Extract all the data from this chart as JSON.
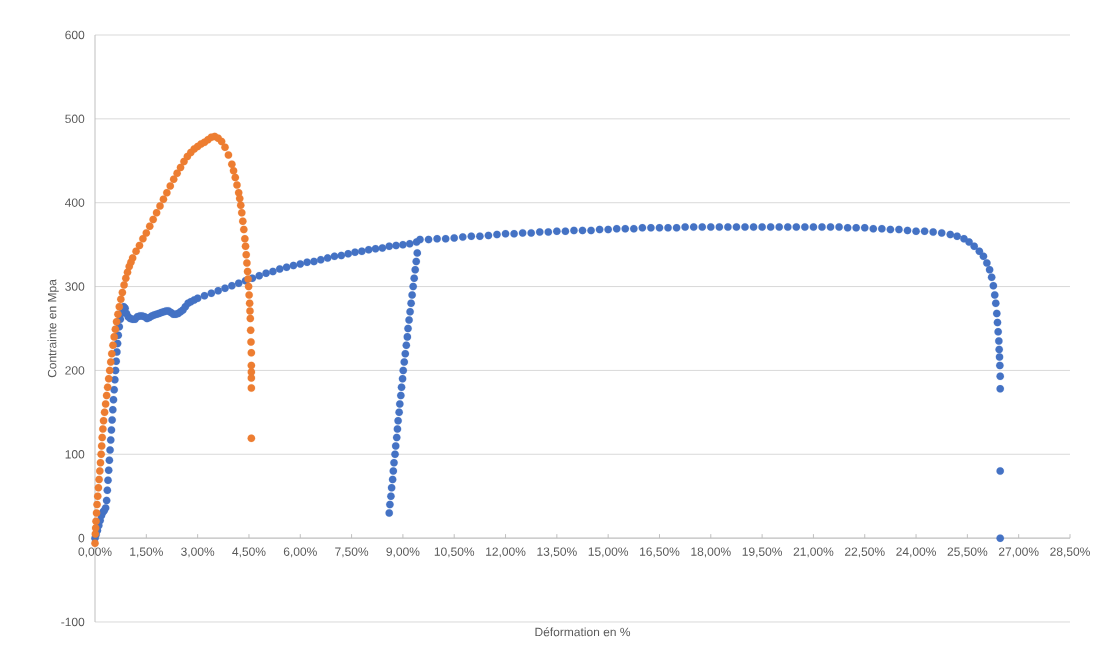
{
  "chart_data": {
    "type": "scatter",
    "xlabel": "Déformation en %",
    "ylabel": "Contrainte en Mpa",
    "xlim": [
      0,
      28.5
    ],
    "ylim": [
      -100,
      600
    ],
    "xticks": [
      {
        "value": 0,
        "label": "0,00%"
      },
      {
        "value": 1.5,
        "label": "1,50%"
      },
      {
        "value": 3,
        "label": "3,00%"
      },
      {
        "value": 4.5,
        "label": "4,50%"
      },
      {
        "value": 6,
        "label": "6,00%"
      },
      {
        "value": 7.5,
        "label": "7,50%"
      },
      {
        "value": 9,
        "label": "9,00%"
      },
      {
        "value": 10.5,
        "label": "10,50%"
      },
      {
        "value": 12,
        "label": "12,00%"
      },
      {
        "value": 13.5,
        "label": "13,50%"
      },
      {
        "value": 15,
        "label": "15,00%"
      },
      {
        "value": 16.5,
        "label": "16,50%"
      },
      {
        "value": 18,
        "label": "18,00%"
      },
      {
        "value": 19.5,
        "label": "19,50%"
      },
      {
        "value": 21,
        "label": "21,00%"
      },
      {
        "value": 22.5,
        "label": "22,50%"
      },
      {
        "value": 24,
        "label": "24,00%"
      },
      {
        "value": 25.5,
        "label": "25,50%"
      },
      {
        "value": 27,
        "label": "27,00%"
      },
      {
        "value": 28.5,
        "label": "28,50%"
      }
    ],
    "yticks": [
      -100,
      0,
      100,
      200,
      300,
      400,
      500,
      600
    ],
    "grid": "y",
    "marker": "circle",
    "series": [
      {
        "color": "#4472c4",
        "x": [
          0.0,
          0.03,
          0.07,
          0.11,
          0.15,
          0.19,
          0.23,
          0.27,
          0.31,
          0.34,
          0.36,
          0.38,
          0.4,
          0.42,
          0.44,
          0.46,
          0.48,
          0.5,
          0.52,
          0.54,
          0.56,
          0.58,
          0.6,
          0.62,
          0.64,
          0.66,
          0.68,
          0.71,
          0.74,
          0.77,
          0.84,
          0.88,
          0.92,
          0.97,
          1.03,
          1.1,
          1.17,
          1.24,
          1.31,
          1.38,
          1.45,
          1.52,
          1.59,
          1.66,
          1.73,
          1.8,
          1.87,
          1.94,
          2.01,
          2.08,
          2.15,
          2.22,
          2.29,
          2.36,
          2.43,
          2.5,
          2.57,
          2.64,
          2.72,
          2.8,
          2.9,
          3.0,
          3.2,
          3.4,
          3.6,
          3.8,
          4.0,
          4.2,
          4.4,
          4.6,
          4.8,
          5.0,
          5.2,
          5.4,
          5.6,
          5.8,
          6.0,
          6.2,
          6.4,
          6.6,
          6.8,
          7.0,
          7.2,
          7.4,
          7.6,
          7.8,
          8.0,
          8.2,
          8.4,
          8.6,
          8.8,
          9.0,
          9.2,
          9.4,
          9.5,
          8.6,
          8.62,
          8.65,
          8.67,
          8.7,
          8.72,
          8.74,
          8.77,
          8.79,
          8.82,
          8.84,
          8.86,
          8.89,
          8.91,
          8.94,
          8.96,
          8.99,
          9.01,
          9.04,
          9.07,
          9.1,
          9.13,
          9.15,
          9.18,
          9.21,
          9.24,
          9.27,
          9.3,
          9.33,
          9.36,
          9.39,
          9.42,
          9.75,
          10.0,
          10.25,
          10.5,
          10.75,
          11.0,
          11.25,
          11.5,
          11.75,
          12.0,
          12.25,
          12.5,
          12.75,
          13.0,
          13.25,
          13.5,
          13.75,
          14.0,
          14.25,
          14.5,
          14.75,
          15.0,
          15.25,
          15.5,
          15.75,
          16.0,
          16.25,
          16.5,
          16.75,
          17.0,
          17.25,
          17.5,
          17.75,
          18.0,
          18.25,
          18.5,
          18.75,
          19.0,
          19.25,
          19.5,
          19.75,
          20.0,
          20.25,
          20.5,
          20.75,
          21.0,
          21.25,
          21.5,
          21.75,
          22.0,
          22.25,
          22.5,
          22.75,
          23.0,
          23.25,
          23.5,
          23.75,
          24.0,
          24.25,
          24.5,
          24.75,
          25.0,
          25.2,
          25.4,
          25.55,
          25.7,
          25.85,
          25.97,
          26.07,
          26.15,
          26.21,
          26.26,
          26.3,
          26.33,
          26.36,
          26.38,
          26.4,
          26.42,
          26.43,
          26.44,
          26.45,
          26.46,
          26.46,
          26.46,
          26.46
        ],
        "values": [
          0,
          4,
          9,
          15,
          21,
          27,
          31,
          33,
          36,
          45,
          57,
          69,
          81,
          93,
          105,
          117,
          129,
          141,
          153,
          165,
          177,
          189,
          200,
          211,
          222,
          232,
          242,
          252,
          261,
          268,
          276,
          274,
          268,
          264,
          262,
          261,
          261,
          264,
          265,
          265,
          264,
          262,
          263,
          265,
          266,
          267,
          268,
          269,
          270,
          271,
          271,
          269,
          267,
          267,
          268,
          270,
          272,
          276,
          280,
          282,
          284,
          286,
          289,
          292,
          295,
          298,
          301,
          304,
          307,
          310,
          313,
          316,
          318,
          321,
          323,
          325,
          327,
          329,
          330,
          332,
          334,
          336,
          337,
          339,
          341,
          342,
          344,
          345,
          346,
          348,
          349,
          350,
          351,
          353,
          356,
          30,
          40,
          50,
          60,
          70,
          80,
          90,
          100,
          110,
          120,
          130,
          140,
          150,
          160,
          170,
          180,
          190,
          200,
          210,
          220,
          230,
          240,
          250,
          260,
          270,
          280,
          290,
          300,
          310,
          320,
          330,
          340,
          356,
          357,
          357,
          358,
          359,
          360,
          360,
          361,
          362,
          363,
          363,
          364,
          364,
          365,
          365,
          366,
          366,
          367,
          367,
          367,
          368,
          368,
          369,
          369,
          369,
          370,
          370,
          370,
          370,
          370,
          371,
          371,
          371,
          371,
          371,
          371,
          371,
          371,
          371,
          371,
          371,
          371,
          371,
          371,
          371,
          371,
          371,
          371,
          371,
          370,
          370,
          370,
          369,
          369,
          368,
          368,
          367,
          366,
          366,
          365,
          364,
          362,
          360,
          357,
          353,
          348,
          342,
          336,
          328,
          320,
          311,
          301,
          290,
          280,
          268,
          257,
          246,
          235,
          225,
          216,
          206,
          193,
          178,
          80,
          0
        ]
      },
      {
        "color": "#ed7d31",
        "x": [
          0.0,
          0.01,
          0.02,
          0.03,
          0.045,
          0.06,
          0.08,
          0.1,
          0.12,
          0.14,
          0.16,
          0.18,
          0.195,
          0.21,
          0.23,
          0.25,
          0.28,
          0.31,
          0.34,
          0.37,
          0.4,
          0.43,
          0.46,
          0.49,
          0.525,
          0.56,
          0.595,
          0.63,
          0.67,
          0.71,
          0.755,
          0.8,
          0.85,
          0.9,
          0.95,
          1.0,
          1.05,
          1.1,
          1.2,
          1.3,
          1.4,
          1.5,
          1.6,
          1.7,
          1.8,
          1.9,
          2.0,
          2.1,
          2.2,
          2.3,
          2.4,
          2.5,
          2.6,
          2.7,
          2.8,
          2.9,
          3.0,
          3.1,
          3.2,
          3.3,
          3.4,
          3.5,
          3.6,
          3.7,
          3.8,
          3.9,
          4.0,
          4.05,
          4.1,
          4.15,
          4.2,
          4.23,
          4.26,
          4.29,
          4.32,
          4.35,
          4.38,
          4.4,
          4.42,
          4.44,
          4.46,
          4.475,
          4.49,
          4.505,
          4.52,
          4.53,
          4.54,
          4.55,
          4.56,
          4.57,
          4.57,
          4.57,
          4.57,
          4.57,
          4.57
        ],
        "values": [
          -6,
          5,
          12,
          20,
          30,
          40,
          50,
          60,
          70,
          80,
          90,
          100,
          110,
          120,
          130,
          140,
          150,
          160,
          170,
          180,
          190,
          200,
          210,
          220,
          230,
          240,
          249,
          258,
          267,
          276,
          285,
          293,
          302,
          310,
          317,
          324,
          329,
          334,
          342,
          349,
          357,
          364,
          372,
          380,
          388,
          396,
          404,
          412,
          420,
          428,
          435,
          442,
          449,
          455,
          460,
          464,
          467,
          470,
          472,
          475,
          478,
          479,
          477,
          473,
          466,
          457,
          446,
          438,
          430,
          421,
          412,
          405,
          397,
          388,
          378,
          368,
          357,
          348,
          338,
          328,
          318,
          309,
          300,
          290,
          280,
          271,
          262,
          248,
          234,
          221,
          206,
          198,
          191,
          179,
          119
        ]
      }
    ]
  }
}
